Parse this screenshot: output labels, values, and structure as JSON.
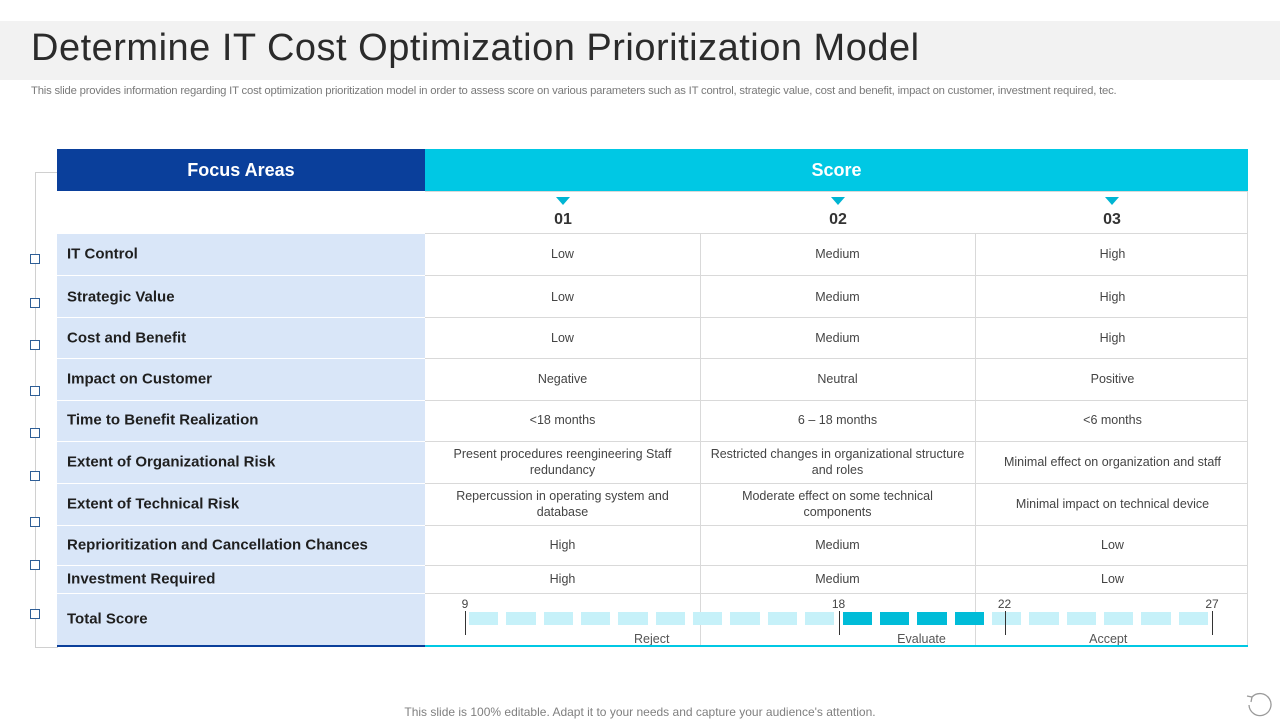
{
  "slide": {
    "title": "Determine IT Cost Optimization Prioritization Model",
    "subtitle": "This slide provides information regarding IT cost optimization prioritization model in order to assess score on various parameters such as IT control, strategic value, cost and benefit, impact on customer, investment required, tec.",
    "footer": "This slide is 100% editable. Adapt it to your needs and capture your audience's attention."
  },
  "table": {
    "focus_header": "Focus Areas",
    "score_header": "Score",
    "columns": [
      "01",
      "02",
      "03"
    ],
    "rows": [
      {
        "label": "IT Control",
        "values": [
          "Low",
          "Medium",
          "High"
        ]
      },
      {
        "label": "Strategic Value",
        "values": [
          "Low",
          "Medium",
          "High"
        ]
      },
      {
        "label": "Cost and Benefit",
        "values": [
          "Low",
          "Medium",
          "High"
        ]
      },
      {
        "label": "Impact on Customer",
        "values": [
          "Negative",
          "Neutral",
          "Positive"
        ]
      },
      {
        "label": "Time to Benefit Realization",
        "values": [
          "<18 months",
          "6 – 18 months",
          "<6 months"
        ]
      },
      {
        "label": "Extent of Organizational Risk",
        "values": [
          "Present procedures reengineering Staff redundancy",
          "Restricted changes in organizational structure and roles",
          "Minimal effect on organization and staff"
        ]
      },
      {
        "label": "Extent of Technical Risk",
        "values": [
          "Repercussion in operating system and database",
          "Moderate effect on some technical components",
          "Minimal impact on technical device"
        ]
      },
      {
        "label": "Reprioritization and Cancellation Chances",
        "values": [
          "High",
          "Medium",
          "Low"
        ]
      },
      {
        "label": "Investment Required",
        "values": [
          "High",
          "Medium",
          "Low"
        ]
      }
    ],
    "total_label": "Total Score"
  },
  "score_scale": {
    "min": 9,
    "max": 27,
    "ticks": [
      "9",
      "18",
      "22",
      "27"
    ],
    "highlight_range": [
      18,
      22
    ],
    "zones": [
      {
        "label": "Reject",
        "from": 9,
        "to": 18
      },
      {
        "label": "Evaluate",
        "from": 18,
        "to": 22
      },
      {
        "label": "Accept",
        "from": 22,
        "to": 27
      }
    ]
  },
  "colors": {
    "focus_header": "#0a3f9b",
    "score_header": "#00c8e4",
    "segment_light": "#c6f1f9",
    "segment_dark": "#00bcd8",
    "left_column_fill": "#d9e6f8"
  }
}
